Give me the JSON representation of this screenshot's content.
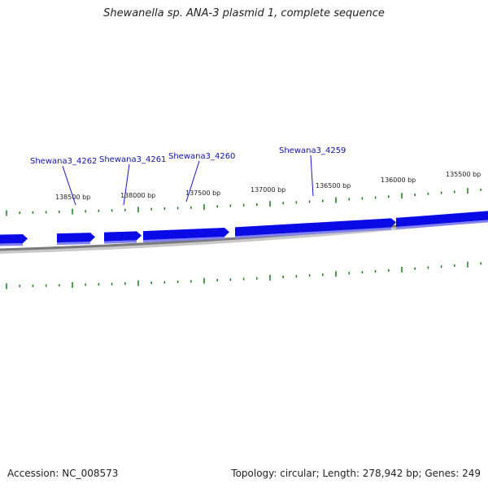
{
  "title": "Shewanella sp. ANA-3 plasmid 1, complete sequence",
  "footer": {
    "accession": "Accession: NC_008573",
    "summary": "Topology: circular; Length: 278,942 bp; Genes: 249"
  },
  "colors": {
    "gene_fill": "#0a0ae6",
    "gene_shadow": "#8080f0",
    "backbone": "#808080",
    "tick": "#1a7a1a",
    "label": "#1111aa",
    "leader": "#1515c0"
  },
  "ticks": [
    {
      "label": "138500 bp"
    },
    {
      "label": "138000 bp"
    },
    {
      "label": "137500 bp"
    },
    {
      "label": "137000 bp"
    },
    {
      "label": "136500 bp"
    },
    {
      "label": "136000 bp"
    },
    {
      "label": "135500 bp"
    }
  ],
  "genes": [
    {
      "label": "Shewana3_4262"
    },
    {
      "label": "Shewana3_4261"
    },
    {
      "label": "Shewana3_4260"
    },
    {
      "label": "Shewana3_4259"
    }
  ]
}
